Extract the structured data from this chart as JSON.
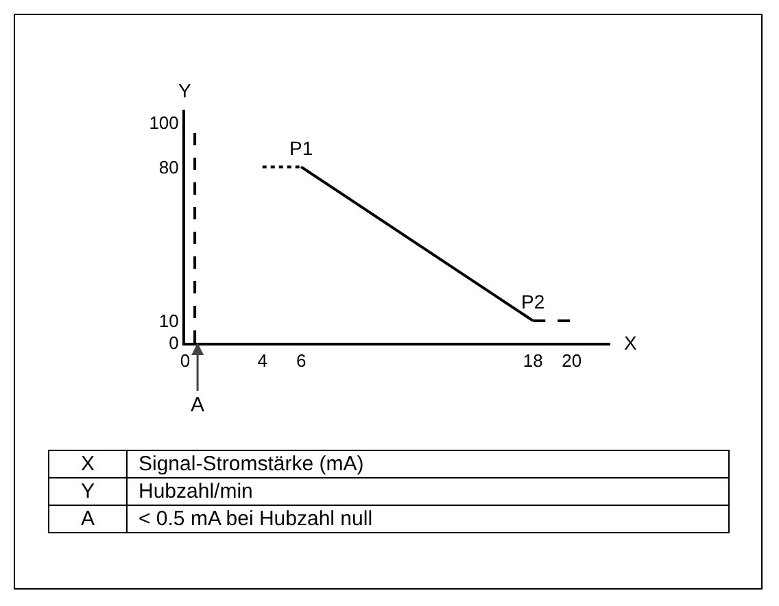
{
  "chart_data": {
    "type": "line",
    "xlabel": "X",
    "ylabel": "Y",
    "xlim": [
      0,
      22
    ],
    "ylim": [
      0,
      106
    ],
    "xticks": [
      0,
      4,
      6,
      18,
      20
    ],
    "yticks": [
      0,
      10,
      80,
      100
    ],
    "grid": false,
    "marker": "none",
    "series": [
      {
        "color": "#000000",
        "x": [
          6,
          18
        ],
        "values": [
          80,
          10
        ],
        "line_style": "solid"
      },
      {
        "color": "#000000",
        "x": [
          4,
          6
        ],
        "values": [
          80,
          80
        ],
        "line_style": "dotted"
      },
      {
        "color": "#000000",
        "x": [
          18,
          20
        ],
        "values": [
          10,
          10
        ],
        "line_style": "dashed"
      }
    ],
    "ref_lines": [
      {
        "axis": "x",
        "value": 0.5,
        "label": "A",
        "color": "#000000",
        "line_style": "dashed"
      }
    ],
    "annotations": [
      {
        "text": "P1",
        "x": 6,
        "y": 80
      },
      {
        "text": "P2",
        "x": 18,
        "y": 10
      },
      "X",
      "Signal-Stromstärke (mA)",
      "Y",
      "Hubzahl/min",
      "A",
      "< 0.5 mA bei Hubzahl null"
    ]
  }
}
